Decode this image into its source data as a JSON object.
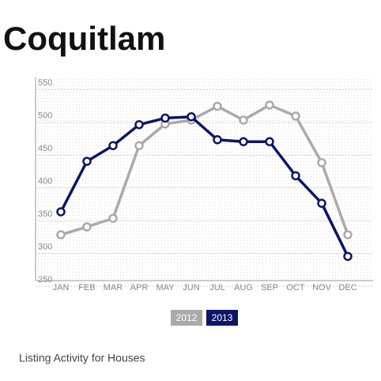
{
  "chart_data": {
    "type": "line",
    "title": "Coquitlam",
    "subtitle": "Listing Activity for Houses",
    "categories": [
      "JAN",
      "FEB",
      "MAR",
      "APR",
      "MAY",
      "JUN",
      "JUL",
      "AUG",
      "SEP",
      "OCT",
      "NOV",
      "DEC"
    ],
    "series": [
      {
        "name": "2012",
        "color": "#aaaaaa",
        "values": [
          320,
          332,
          345,
          456,
          489,
          495,
          516,
          495,
          518,
          501,
          430,
          320
        ]
      },
      {
        "name": "2013",
        "color": "#0d1566",
        "values": [
          355,
          432,
          456,
          488,
          498,
          500,
          465,
          462,
          462,
          410,
          368,
          287
        ]
      }
    ],
    "ylim": [
      250,
      560
    ],
    "yticks": [
      250,
      300,
      350,
      400,
      450,
      500,
      550
    ],
    "grid": true
  }
}
